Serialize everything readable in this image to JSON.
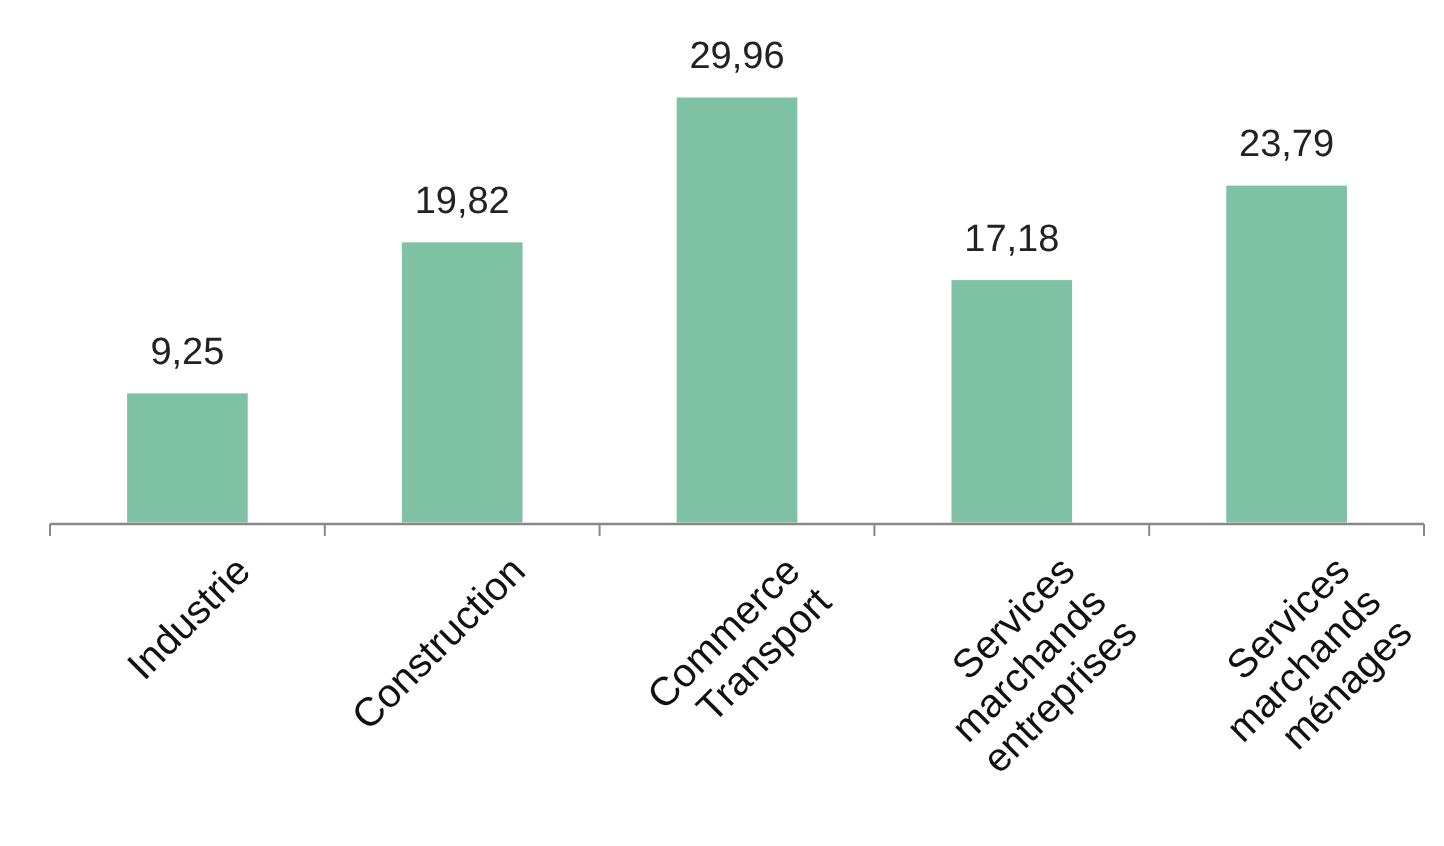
{
  "chart_data": {
    "type": "bar",
    "categories": [
      "Industrie",
      "Construction",
      "Commerce Transport",
      "Services marchands entreprises",
      "Services marchands ménages"
    ],
    "values": [
      9.25,
      19.82,
      29.96,
      17.18,
      23.79
    ],
    "value_labels": [
      "9,25",
      "19,82",
      "29,96",
      "17,18",
      "23,79"
    ],
    "color": "#7fc1a5"
  }
}
